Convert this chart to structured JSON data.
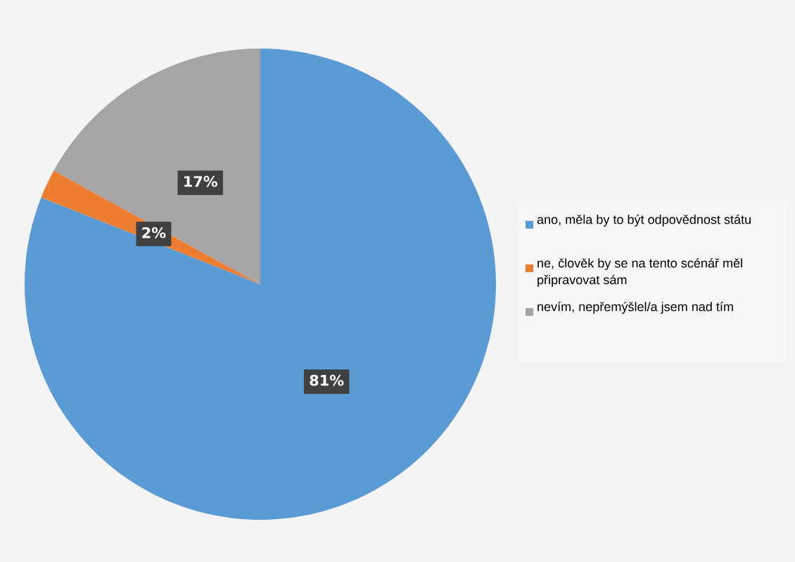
{
  "chart_data": {
    "type": "pie",
    "categories": [
      "ano, měla by to být odpovědnost státu",
      "ne, člověk by se na tento scénář měl připravovat sám",
      "nevím, nepřemýšlel/a jsem nad tím"
    ],
    "values": [
      81,
      2,
      17
    ],
    "colors": [
      "#5b9bd5",
      "#ed7d31",
      "#a5a5a5"
    ],
    "value_labels": [
      "81%",
      "2%",
      "17%"
    ],
    "legend": "right"
  }
}
